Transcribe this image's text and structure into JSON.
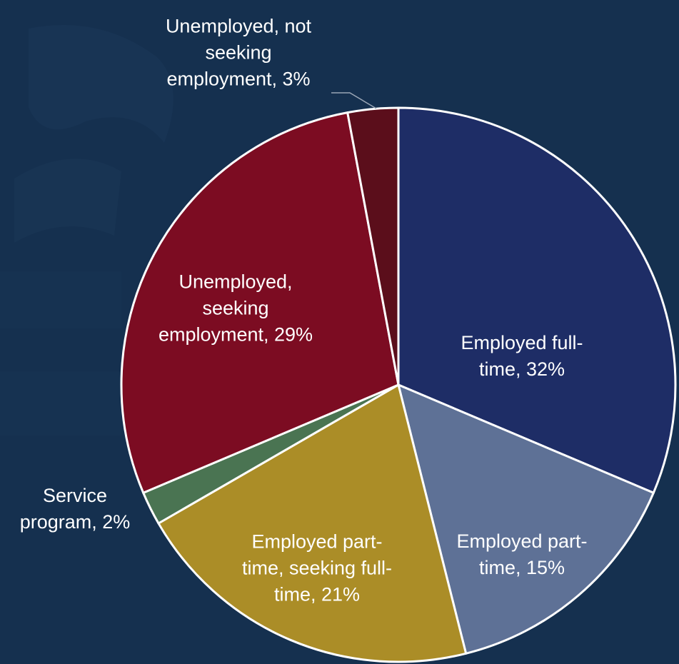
{
  "chart_data": {
    "type": "pie",
    "title": "",
    "legend": "none",
    "start_angle_deg": 0,
    "direction": "clockwise",
    "slices": [
      {
        "label": "Employed full-\ntime, 32%",
        "value": 32,
        "color": "#1e2d66"
      },
      {
        "label": "Employed part-\ntime, 15%",
        "value": 15,
        "color": "#5e7196"
      },
      {
        "label": "Employed part-\ntime, seeking full-\ntime, 21%",
        "value": 21,
        "color": "#ab8d27"
      },
      {
        "label": "Service\nprogram, 2%",
        "value": 2,
        "color": "#4a7452"
      },
      {
        "label": "Unemployed,\nseeking\nemployment, 29%",
        "value": 29,
        "color": "#7c0c22"
      },
      {
        "label": "Unemployed, not\nseeking\nemployment, 3%",
        "value": 3,
        "color": "#5b0e1b"
      }
    ],
    "colors": {
      "background": "#15304f",
      "slice_border": "#ffffff",
      "leader_line": "#9aa6b6"
    }
  }
}
